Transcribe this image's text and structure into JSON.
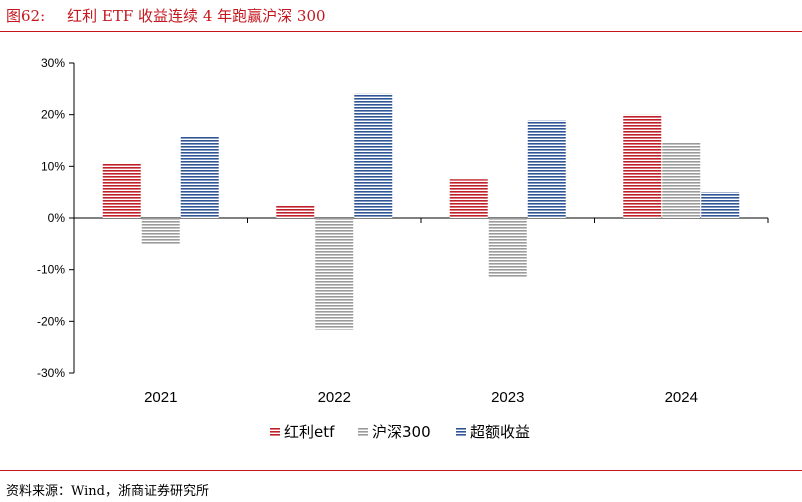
{
  "header": {
    "figure_number": "图62:",
    "title": "红利 ETF 收益连续 4 年跑赢沪深 300"
  },
  "source": "资料来源：Wind，浙商证券研究所",
  "colors": {
    "accent": "#c4161c",
    "series": [
      "#c0202a",
      "#9b9b9b",
      "#2f5597"
    ]
  },
  "chart_data": {
    "type": "bar",
    "categories": [
      "2021",
      "2022",
      "2023",
      "2024"
    ],
    "series": [
      {
        "name": "红利etf",
        "values": [
          10.5,
          2.5,
          7.5,
          20.0
        ]
      },
      {
        "name": "沪深300",
        "values": [
          -5.2,
          -21.6,
          -11.4,
          14.7
        ]
      },
      {
        "name": "超额收益",
        "values": [
          15.8,
          24.1,
          18.9,
          5.0
        ]
      }
    ],
    "yticks": [
      "30%",
      "20%",
      "10%",
      "0%",
      "-10%",
      "-20%",
      "-30%"
    ],
    "ylim": [
      -30,
      30
    ],
    "ytick_values": [
      30,
      20,
      10,
      0,
      -10,
      -20,
      -30
    ],
    "grid": false,
    "legend": "bottom"
  }
}
